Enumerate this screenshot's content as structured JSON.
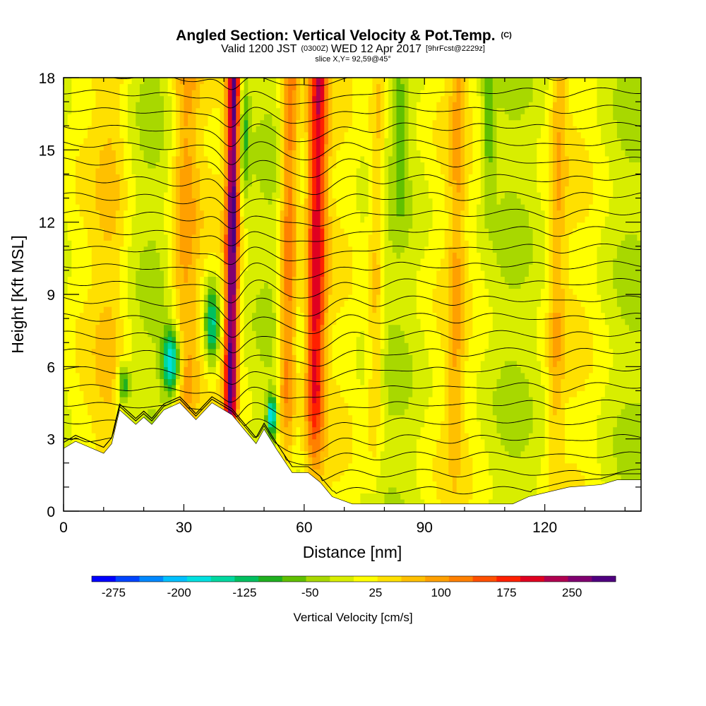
{
  "chart_data": {
    "type": "heatmap",
    "title": "Angled Section: Vertical Velocity & Pot.Temp.",
    "title_unit": "(C)",
    "subtitle": {
      "valid_prefix": "Valid 1200 JST",
      "utc": "(0300Z)",
      "date": "WED 12 Apr 2017",
      "forecast": "[9hrFcst@2229z]"
    },
    "slice": "slice X,Y= 92,59@45°",
    "xlabel": "Distance [nm]",
    "ylabel": "Height [Kft MSL]",
    "xlim": [
      0,
      144
    ],
    "ylim": [
      0,
      18
    ],
    "x_ticks": [
      0,
      30,
      60,
      90,
      120
    ],
    "y_ticks": [
      0,
      3,
      6,
      9,
      12,
      15,
      18
    ],
    "colorbar": {
      "title": "Vertical Velocity [cm/s]",
      "labels": [
        "-275",
        "-200",
        "-125",
        "-50",
        "25",
        "100",
        "175",
        "250"
      ],
      "min": -300,
      "max": 300,
      "colors": [
        "#0000ff",
        "#0044ff",
        "#0088ff",
        "#00c0ff",
        "#00e0e0",
        "#00d8a0",
        "#00c060",
        "#20b020",
        "#60c000",
        "#a8d800",
        "#d8ee00",
        "#ffff00",
        "#ffe000",
        "#ffc000",
        "#ffa000",
        "#ff8000",
        "#ff5000",
        "#ff2000",
        "#e00020",
        "#b00050",
        "#800070",
        "#500080"
      ]
    },
    "terrain_kft": [
      {
        "x": 0,
        "h": 2.6
      },
      {
        "x": 3,
        "h": 2.9
      },
      {
        "x": 10,
        "h": 2.4
      },
      {
        "x": 12,
        "h": 2.8
      },
      {
        "x": 14,
        "h": 4.2
      },
      {
        "x": 18,
        "h": 3.6
      },
      {
        "x": 20,
        "h": 3.9
      },
      {
        "x": 22,
        "h": 3.6
      },
      {
        "x": 25,
        "h": 4.2
      },
      {
        "x": 29,
        "h": 4.5
      },
      {
        "x": 33,
        "h": 3.8
      },
      {
        "x": 37,
        "h": 4.5
      },
      {
        "x": 42,
        "h": 4.0
      },
      {
        "x": 45,
        "h": 3.4
      },
      {
        "x": 48,
        "h": 2.8
      },
      {
        "x": 50,
        "h": 3.4
      },
      {
        "x": 53,
        "h": 2.6
      },
      {
        "x": 57,
        "h": 1.6
      },
      {
        "x": 61,
        "h": 1.6
      },
      {
        "x": 64,
        "h": 1.2
      },
      {
        "x": 67,
        "h": 0.6
      },
      {
        "x": 72,
        "h": 0.3
      },
      {
        "x": 112,
        "h": 0.3
      },
      {
        "x": 116,
        "h": 0.6
      },
      {
        "x": 126,
        "h": 1.0
      },
      {
        "x": 134,
        "h": 1.1
      },
      {
        "x": 138,
        "h": 1.3
      },
      {
        "x": 144,
        "h": 1.3
      }
    ],
    "updrafts_cms": [
      {
        "x": 42,
        "peak": 270,
        "width": 1.6
      },
      {
        "x": 63,
        "peak": 190,
        "width": 2.4
      },
      {
        "x": 56,
        "peak": 140,
        "width": 2.2
      },
      {
        "x": 78,
        "peak": 70,
        "width": 2.0
      },
      {
        "x": 98,
        "peak": 60,
        "width": 2.0
      },
      {
        "x": 123,
        "peak": 60,
        "width": 2.0
      },
      {
        "x": 30,
        "peak": 90,
        "width": 3.5
      },
      {
        "x": 12,
        "peak": 40,
        "width": 4.0
      }
    ],
    "downdrafts_cms": [
      {
        "x": 27,
        "y": 6.2,
        "peak": -230,
        "sx": 2.2,
        "sy": 1.4
      },
      {
        "x": 37,
        "y": 7.8,
        "peak": -170,
        "sx": 1.8,
        "sy": 1.8
      },
      {
        "x": 52,
        "y": 4.0,
        "peak": -190,
        "sx": 1.2,
        "sy": 0.8
      },
      {
        "x": 15,
        "y": 5.3,
        "peak": -130,
        "sx": 1.5,
        "sy": 0.8
      },
      {
        "x": 45,
        "y": 16.0,
        "peak": -90,
        "sx": 1.4,
        "sy": 3.0
      },
      {
        "x": 84,
        "y": 15.5,
        "peak": -60,
        "sx": 1.5,
        "sy": 3.0
      },
      {
        "x": 106,
        "y": 16.0,
        "peak": -80,
        "sx": 1.5,
        "sy": 3.0
      }
    ]
  }
}
